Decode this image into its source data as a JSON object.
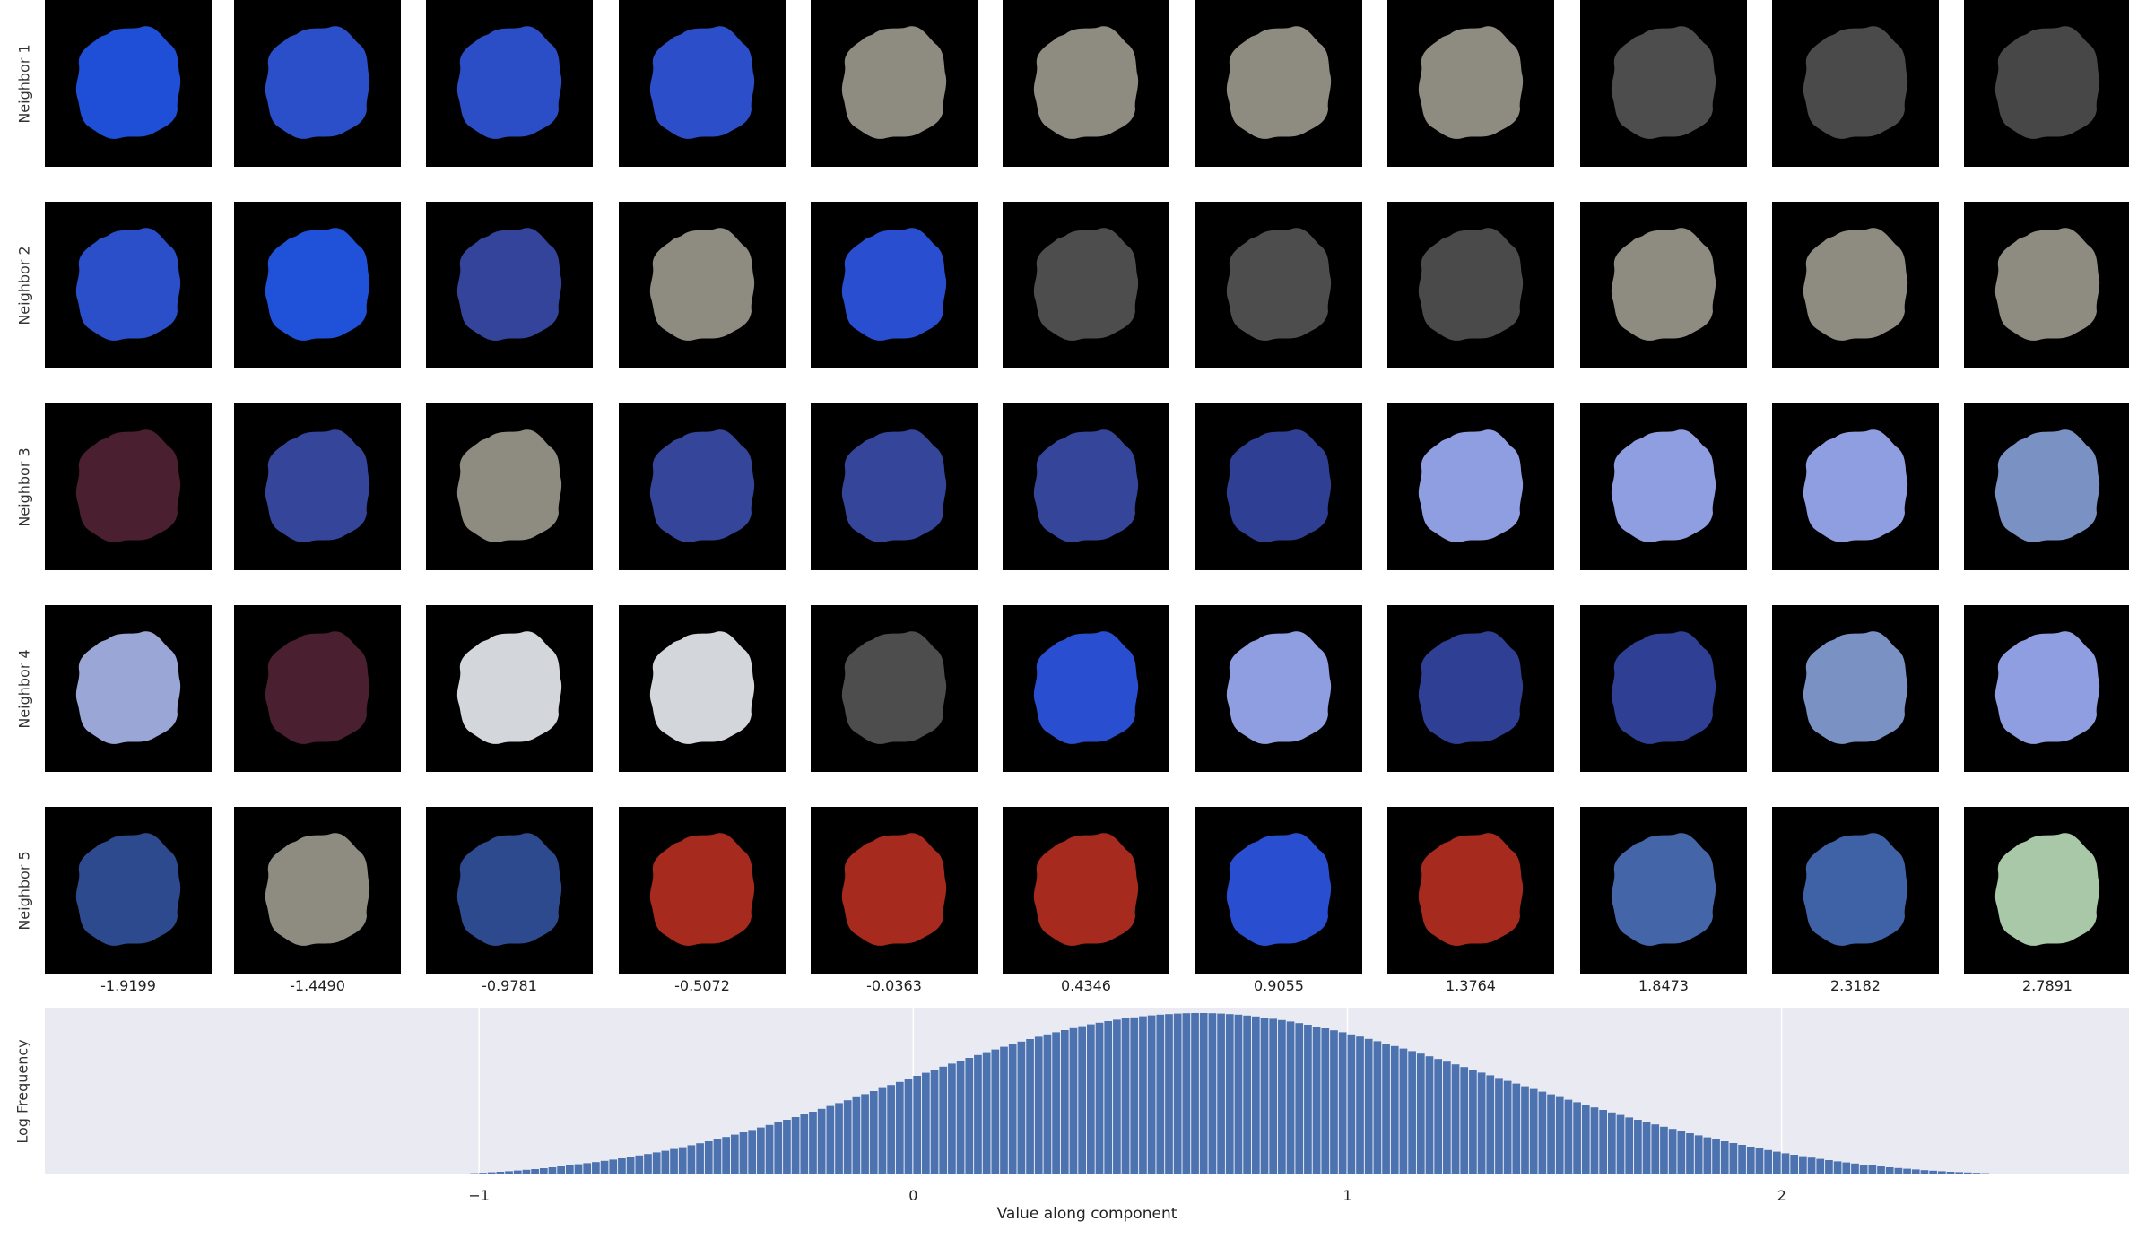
{
  "row_labels": [
    "Neighbor 1",
    "Neighbor 2",
    "Neighbor 3",
    "Neighbor 4",
    "Neighbor 5"
  ],
  "column_values": [
    "-1.9199",
    "-1.4490",
    "-0.9781",
    "-0.5072",
    "-0.0363",
    "0.4346",
    "0.9055",
    "1.3764",
    "1.8473",
    "2.3182",
    "2.7891"
  ],
  "tiles": [
    [
      "#1f4fd6",
      "#2a4fc8",
      "#2b4ec6",
      "#2c4ec8",
      "#8e8c80",
      "#8e8c80",
      "#8e8c80",
      "#8e8c80",
      "#4d4d4d",
      "#4a4a4a",
      "#474747"
    ],
    [
      "#2a4fc8",
      "#1f52d8",
      "#33449a",
      "#8e8c80",
      "#2a4ed0",
      "#4d4d4d",
      "#4d4d4d",
      "#4a4a4a",
      "#8e8c80",
      "#8e8c80",
      "#8e8c80"
    ],
    [
      "#4a1f2f",
      "#34459a",
      "#8e8c80",
      "#34459a",
      "#34459a",
      "#34459a",
      "#2f3f94",
      "#8f9ee0",
      "#8f9ee0",
      "#8f9ee0",
      "#7a91c4"
    ],
    [
      "#9aa6d6",
      "#4a1f2f",
      "#d3d6da",
      "#d3d6da",
      "#4d4d4d",
      "#2a4ed0",
      "#8f9ee0",
      "#2f3f94",
      "#2f3f94",
      "#7a91c4",
      "#8f9ee0"
    ],
    [
      "#2e4a8e",
      "#8e8c80",
      "#2e4a8e",
      "#a62b1e",
      "#a62b1e",
      "#a62b1e",
      "#2a4ed0",
      "#a62b1e",
      "#4466a8",
      "#3f62a6",
      "#a8c8a8"
    ]
  ],
  "chart_data": {
    "type": "bar",
    "title": "",
    "xlabel": "Value along component",
    "ylabel": "Log Frequency",
    "xlim": [
      -2.0,
      2.8
    ],
    "x_ticks": [
      "−1",
      "0",
      "1",
      "2"
    ],
    "x_tick_values": [
      -1,
      0,
      1,
      2
    ],
    "grid": true,
    "bar_color": "#4c72b0",
    "background_color": "#eaeaf2",
    "bin_start": -1.1,
    "bin_width": 0.02,
    "values": [
      0.01,
      0.02,
      0.03,
      0.05,
      0.07,
      0.09,
      0.12,
      0.15,
      0.18,
      0.22,
      0.26,
      0.3,
      0.35,
      0.4,
      0.45,
      0.51,
      0.57,
      0.63,
      0.69,
      0.76,
      0.83,
      0.9,
      0.98,
      1.06,
      1.14,
      1.23,
      1.32,
      1.42,
      1.52,
      1.63,
      1.74,
      1.85,
      1.97,
      2.09,
      2.22,
      2.35,
      2.48,
      2.62,
      2.76,
      2.9,
      3.05,
      3.2,
      3.35,
      3.5,
      3.66,
      3.82,
      3.98,
      4.14,
      4.31,
      4.48,
      4.65,
      4.82,
      4.99,
      5.16,
      5.33,
      5.5,
      5.67,
      5.84,
      6.01,
      6.18,
      6.34,
      6.5,
      6.66,
      6.82,
      6.97,
      7.12,
      7.27,
      7.41,
      7.55,
      7.68,
      7.81,
      7.93,
      8.05,
      8.16,
      8.27,
      8.37,
      8.46,
      8.55,
      8.63,
      8.7,
      8.76,
      8.82,
      8.87,
      8.91,
      8.94,
      8.97,
      8.99,
      9.0,
      9.0,
      8.99,
      8.97,
      8.94,
      8.91,
      8.86,
      8.81,
      8.75,
      8.68,
      8.61,
      8.53,
      8.44,
      8.35,
      8.25,
      8.15,
      8.04,
      7.93,
      7.81,
      7.69,
      7.56,
      7.43,
      7.3,
      7.16,
      7.02,
      6.88,
      6.74,
      6.59,
      6.44,
      6.29,
      6.14,
      5.99,
      5.84,
      5.68,
      5.53,
      5.38,
      5.22,
      5.07,
      4.92,
      4.77,
      4.62,
      4.47,
      4.32,
      4.17,
      4.03,
      3.88,
      3.74,
      3.6,
      3.46,
      3.32,
      3.18,
      3.05,
      2.92,
      2.79,
      2.66,
      2.54,
      2.42,
      2.3,
      2.18,
      2.07,
      1.96,
      1.85,
      1.75,
      1.65,
      1.55,
      1.45,
      1.36,
      1.27,
      1.18,
      1.1,
      1.02,
      0.94,
      0.87,
      0.8,
      0.73,
      0.67,
      0.61,
      0.55,
      0.5,
      0.45,
      0.4,
      0.36,
      0.32,
      0.28,
      0.24,
      0.21,
      0.18,
      0.15,
      0.13,
      0.11,
      0.09,
      0.07,
      0.05,
      0.04,
      0.03,
      0.02,
      0.01
    ]
  }
}
